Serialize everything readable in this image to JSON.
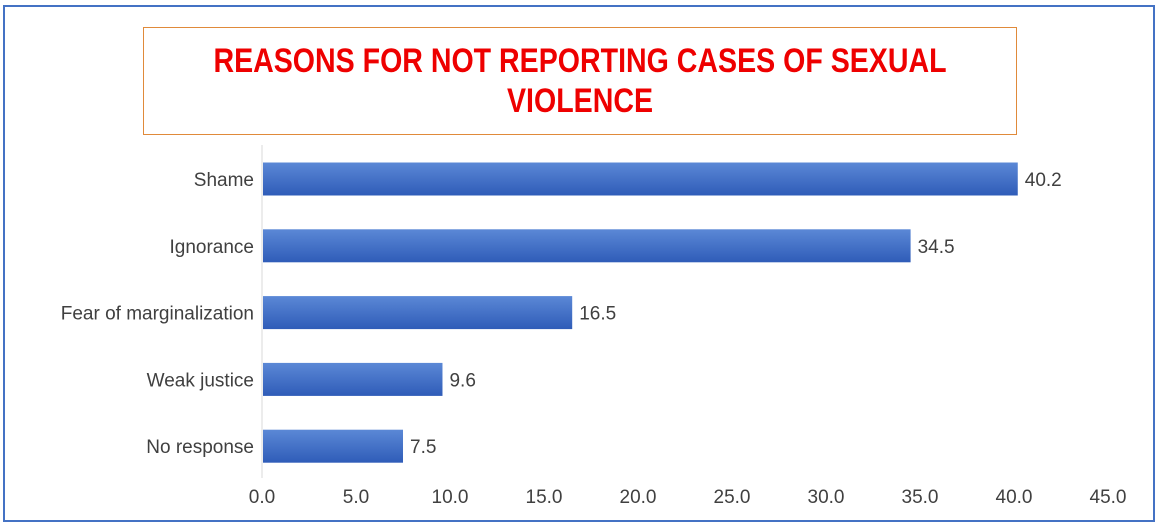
{
  "chart_data": {
    "type": "bar",
    "orientation": "horizontal",
    "title": "REASONS FOR NOT REPORTING CASES OF SEXUAL VIOLENCE",
    "categories": [
      "Shame",
      "Ignorance",
      "Fear of marginalization",
      "Weak justice",
      "No response"
    ],
    "values": [
      40.2,
      34.5,
      16.5,
      9.6,
      7.5
    ],
    "data_labels": [
      "40.2",
      "34.5",
      "16.5",
      "9.6",
      "7.5"
    ],
    "xlim": [
      0,
      45
    ],
    "x_ticks": [
      0,
      5,
      10,
      15,
      20,
      25,
      30,
      35,
      40,
      45
    ],
    "x_tick_labels": [
      "0.0",
      "5.0",
      "10.0",
      "15.0",
      "20.0",
      "25.0",
      "30.0",
      "35.0",
      "40.0",
      "45.0"
    ],
    "xlabel": "",
    "ylabel": "",
    "grid": false,
    "legend": "none",
    "colors": {
      "bar": "#4472c4",
      "bar_top": "#5b88d6",
      "bar_bottom": "#2f5cb8",
      "title": "#ee0000",
      "title_border": "#e08a3a",
      "frame_border": "#4472c4",
      "text": "#404040",
      "axis": "#d9d9d9"
    }
  }
}
